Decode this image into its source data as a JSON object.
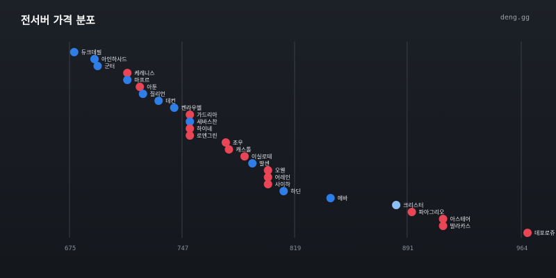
{
  "header": {
    "title": "전서버 가격 분포",
    "brand": "deng.gg"
  },
  "colors": {
    "blue": "#2f7ee8",
    "red": "#e84656",
    "highlight": "#8cc0f5",
    "grid": "#3a3f47"
  },
  "chart_data": {
    "type": "scatter",
    "title": "전서버 가격 분포",
    "x_ticks": [
      675,
      747,
      819,
      891,
      964
    ],
    "xlim": [
      675,
      964
    ],
    "grid": "vertical",
    "points": [
      {
        "name": "듀크데필",
        "x": 678,
        "color": "blue"
      },
      {
        "name": "아인하사드",
        "x": 691,
        "color": "blue"
      },
      {
        "name": "군터",
        "x": 693,
        "color": "blue"
      },
      {
        "name": "케레니스",
        "x": 712,
        "color": "red"
      },
      {
        "name": "마프르",
        "x": 712,
        "color": "blue"
      },
      {
        "name": "아툰",
        "x": 720,
        "color": "red"
      },
      {
        "name": "질리언",
        "x": 722,
        "color": "blue"
      },
      {
        "name": "데컨",
        "x": 732,
        "color": "blue"
      },
      {
        "name": "켄라우헬",
        "x": 742,
        "color": "blue"
      },
      {
        "name": "가드리아",
        "x": 752,
        "color": "red"
      },
      {
        "name": "세바스찬",
        "x": 752,
        "color": "blue"
      },
      {
        "name": "하이네",
        "x": 752,
        "color": "red"
      },
      {
        "name": "로엔그린",
        "x": 752,
        "color": "red"
      },
      {
        "name": "조우",
        "x": 775,
        "color": "red"
      },
      {
        "name": "캐스톨",
        "x": 777,
        "color": "red"
      },
      {
        "name": "이실로테",
        "x": 787,
        "color": "red"
      },
      {
        "name": "발센",
        "x": 792,
        "color": "blue"
      },
      {
        "name": "오웬",
        "x": 802,
        "color": "red"
      },
      {
        "name": "어레인",
        "x": 802,
        "color": "red"
      },
      {
        "name": "사이하",
        "x": 802,
        "color": "red"
      },
      {
        "name": "하딘",
        "x": 812,
        "color": "blue"
      },
      {
        "name": "에바",
        "x": 842,
        "color": "blue"
      },
      {
        "name": "크리스터",
        "x": 884,
        "color": "highlight"
      },
      {
        "name": "파아그리오",
        "x": 894,
        "color": "red"
      },
      {
        "name": "아스테어",
        "x": 914,
        "color": "red"
      },
      {
        "name": "발라카스",
        "x": 914,
        "color": "red"
      },
      {
        "name": "데포로쥬",
        "x": 968,
        "color": "red"
      }
    ]
  }
}
